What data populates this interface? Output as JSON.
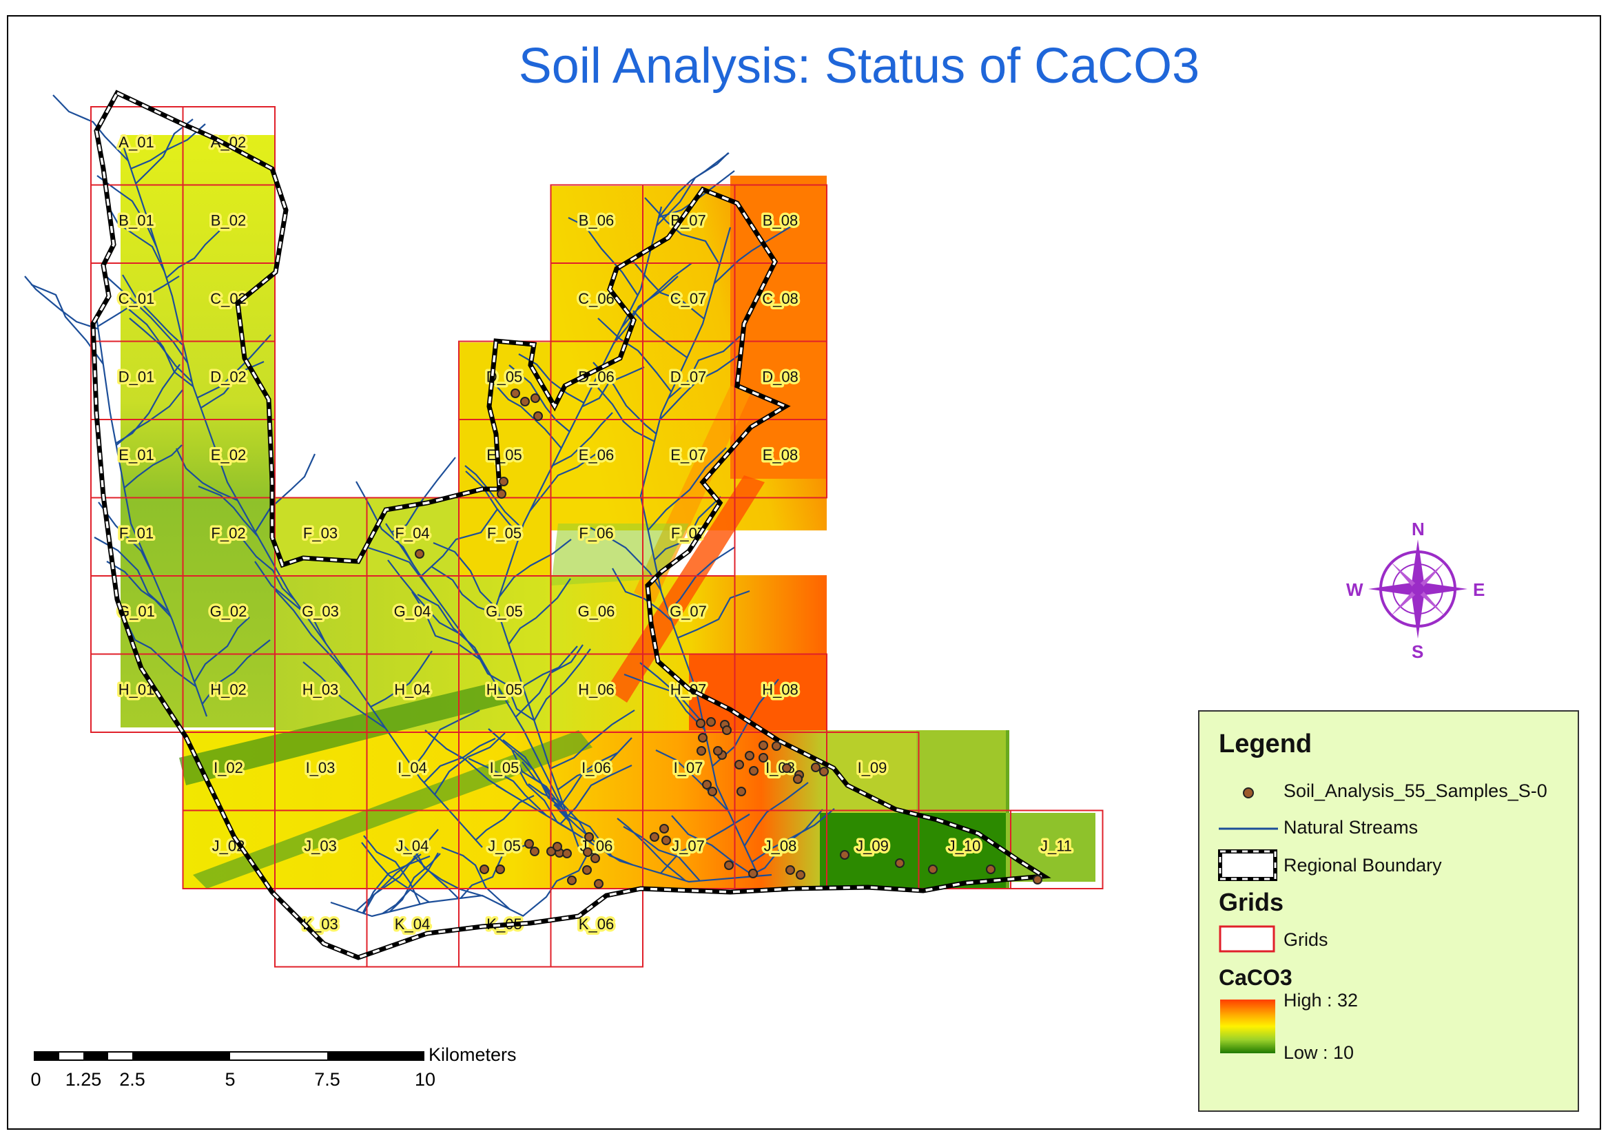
{
  "title": "Soil Analysis: Status of CaCO3",
  "grids": [
    {
      "id": "A_01",
      "row": 0,
      "col": 0
    },
    {
      "id": "A_02",
      "row": 0,
      "col": 1
    },
    {
      "id": "B_01",
      "row": 1,
      "col": 0
    },
    {
      "id": "B_02",
      "row": 1,
      "col": 1
    },
    {
      "id": "B_06",
      "row": 1,
      "col": 5
    },
    {
      "id": "B_07",
      "row": 1,
      "col": 6
    },
    {
      "id": "B_08",
      "row": 1,
      "col": 7
    },
    {
      "id": "C_01",
      "row": 2,
      "col": 0
    },
    {
      "id": "C_02",
      "row": 2,
      "col": 1
    },
    {
      "id": "C_06",
      "row": 2,
      "col": 5
    },
    {
      "id": "C_07",
      "row": 2,
      "col": 6
    },
    {
      "id": "C_08",
      "row": 2,
      "col": 7
    },
    {
      "id": "D_01",
      "row": 3,
      "col": 0
    },
    {
      "id": "D_02",
      "row": 3,
      "col": 1
    },
    {
      "id": "D_05",
      "row": 3,
      "col": 4
    },
    {
      "id": "D_06",
      "row": 3,
      "col": 5
    },
    {
      "id": "D_07",
      "row": 3,
      "col": 6
    },
    {
      "id": "D_08",
      "row": 3,
      "col": 7
    },
    {
      "id": "E_01",
      "row": 4,
      "col": 0
    },
    {
      "id": "E_02",
      "row": 4,
      "col": 1
    },
    {
      "id": "E_05",
      "row": 4,
      "col": 4
    },
    {
      "id": "E_06",
      "row": 4,
      "col": 5
    },
    {
      "id": "E_07",
      "row": 4,
      "col": 6
    },
    {
      "id": "E_08",
      "row": 4,
      "col": 7
    },
    {
      "id": "F_01",
      "row": 5,
      "col": 0
    },
    {
      "id": "F_02",
      "row": 5,
      "col": 1
    },
    {
      "id": "F_03",
      "row": 5,
      "col": 2
    },
    {
      "id": "F_04",
      "row": 5,
      "col": 3
    },
    {
      "id": "F_05",
      "row": 5,
      "col": 4
    },
    {
      "id": "F_06",
      "row": 5,
      "col": 5
    },
    {
      "id": "F_07",
      "row": 5,
      "col": 6
    },
    {
      "id": "G_01",
      "row": 6,
      "col": 0
    },
    {
      "id": "G_02",
      "row": 6,
      "col": 1
    },
    {
      "id": "G_03",
      "row": 6,
      "col": 2
    },
    {
      "id": "G_04",
      "row": 6,
      "col": 3
    },
    {
      "id": "G_05",
      "row": 6,
      "col": 4
    },
    {
      "id": "G_06",
      "row": 6,
      "col": 5
    },
    {
      "id": "G_07",
      "row": 6,
      "col": 6
    },
    {
      "id": "H_01",
      "row": 7,
      "col": 0
    },
    {
      "id": "H_02",
      "row": 7,
      "col": 1
    },
    {
      "id": "H_03",
      "row": 7,
      "col": 2
    },
    {
      "id": "H_04",
      "row": 7,
      "col": 3
    },
    {
      "id": "H_05",
      "row": 7,
      "col": 4
    },
    {
      "id": "H_06",
      "row": 7,
      "col": 5
    },
    {
      "id": "H_07",
      "row": 7,
      "col": 6
    },
    {
      "id": "H_08",
      "row": 7,
      "col": 7
    },
    {
      "id": "I_02",
      "row": 8,
      "col": 1
    },
    {
      "id": "I_03",
      "row": 8,
      "col": 2
    },
    {
      "id": "I_04",
      "row": 8,
      "col": 3
    },
    {
      "id": "I_05",
      "row": 8,
      "col": 4
    },
    {
      "id": "I_06",
      "row": 8,
      "col": 5
    },
    {
      "id": "I_07",
      "row": 8,
      "col": 6
    },
    {
      "id": "I_08",
      "row": 8,
      "col": 7
    },
    {
      "id": "I_09",
      "row": 8,
      "col": 8
    },
    {
      "id": "J_02",
      "row": 9,
      "col": 1
    },
    {
      "id": "J_03",
      "row": 9,
      "col": 2
    },
    {
      "id": "J_04",
      "row": 9,
      "col": 3
    },
    {
      "id": "J_05",
      "row": 9,
      "col": 4
    },
    {
      "id": "J_06",
      "row": 9,
      "col": 5
    },
    {
      "id": "J_07",
      "row": 9,
      "col": 6
    },
    {
      "id": "J_08",
      "row": 9,
      "col": 7
    },
    {
      "id": "J_09",
      "row": 9,
      "col": 8
    },
    {
      "id": "J_10",
      "row": 9,
      "col": 9
    },
    {
      "id": "J_11",
      "row": 9,
      "col": 10
    },
    {
      "id": "K_03",
      "row": 10,
      "col": 2
    },
    {
      "id": "K_04",
      "row": 10,
      "col": 3
    },
    {
      "id": "K_05",
      "row": 10,
      "col": 4
    },
    {
      "id": "K_06",
      "row": 10,
      "col": 5
    }
  ],
  "compass": {
    "n": "N",
    "s": "S",
    "e": "E",
    "w": "W"
  },
  "legend": {
    "heading": "Legend",
    "samples_label": "Soil_Analysis_55_Samples_S-0",
    "streams_label": "Natural Streams",
    "boundary_label": "Regional Boundary",
    "grids_heading": "Grids",
    "grids_label": "Grids",
    "caco3_heading": "CaCO3",
    "high_label": "High : 32",
    "low_label": "Low : 10",
    "high_value": 32,
    "low_value": 10
  },
  "scalebar": {
    "unit": "Kilometers",
    "ticks": [
      "0",
      "1.25",
      "2.5",
      "5",
      "7.5",
      "10"
    ]
  },
  "colors": {
    "title": "#1f66d9",
    "grid_line": "#e0202a",
    "stream": "#1c4e99",
    "sample_fill": "#9c5a2c",
    "label_halo": "#fff566",
    "legend_bg": "#e9fcc0",
    "compass": "#9b2cc7",
    "caco3_high": "#ff4a00",
    "caco3_mid": "#fff200",
    "caco3_low": "#2d8a00"
  }
}
